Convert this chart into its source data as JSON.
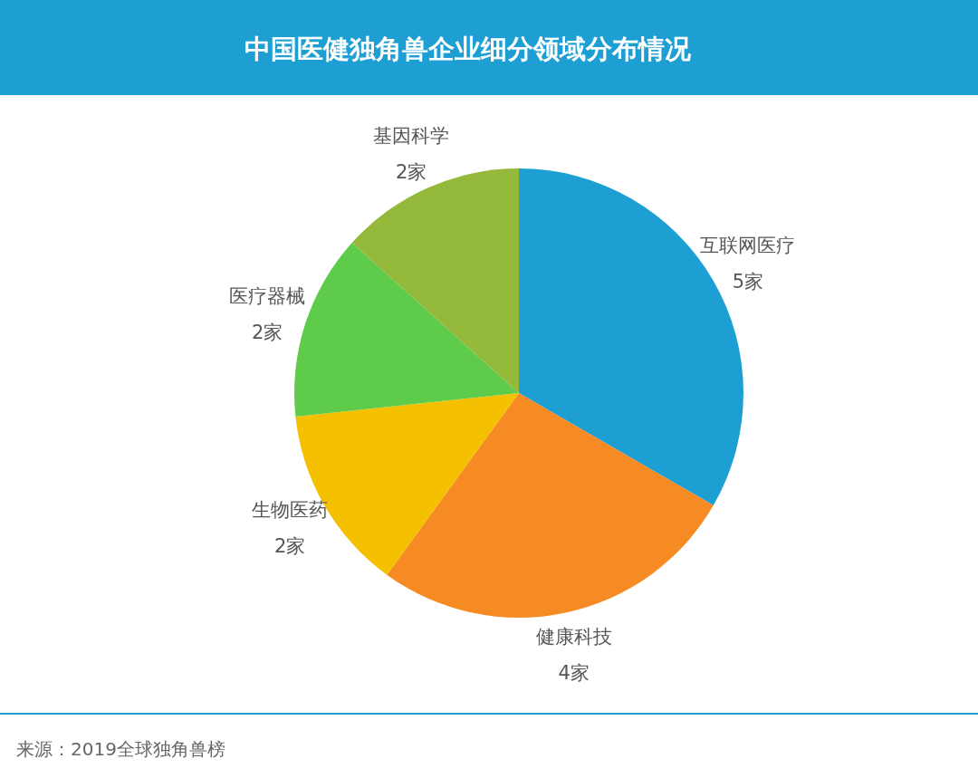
{
  "chart_data": {
    "type": "pie",
    "title": "中国医健独角兽企业细分领域分布情况",
    "categories": [
      "互联网医疗",
      "健康科技",
      "生物医药",
      "医疗器械",
      "基因科学"
    ],
    "values": [
      5,
      4,
      2,
      2,
      2
    ],
    "colors": [
      "#1e9fd4",
      "#f68b24",
      "#f5c000",
      "#5ecc4a",
      "#95b93a"
    ],
    "value_labels": [
      "5家",
      "4家",
      "2家",
      "2家",
      "2家"
    ],
    "annotations": [
      "来源：2019全球独角兽榜"
    ]
  }
}
